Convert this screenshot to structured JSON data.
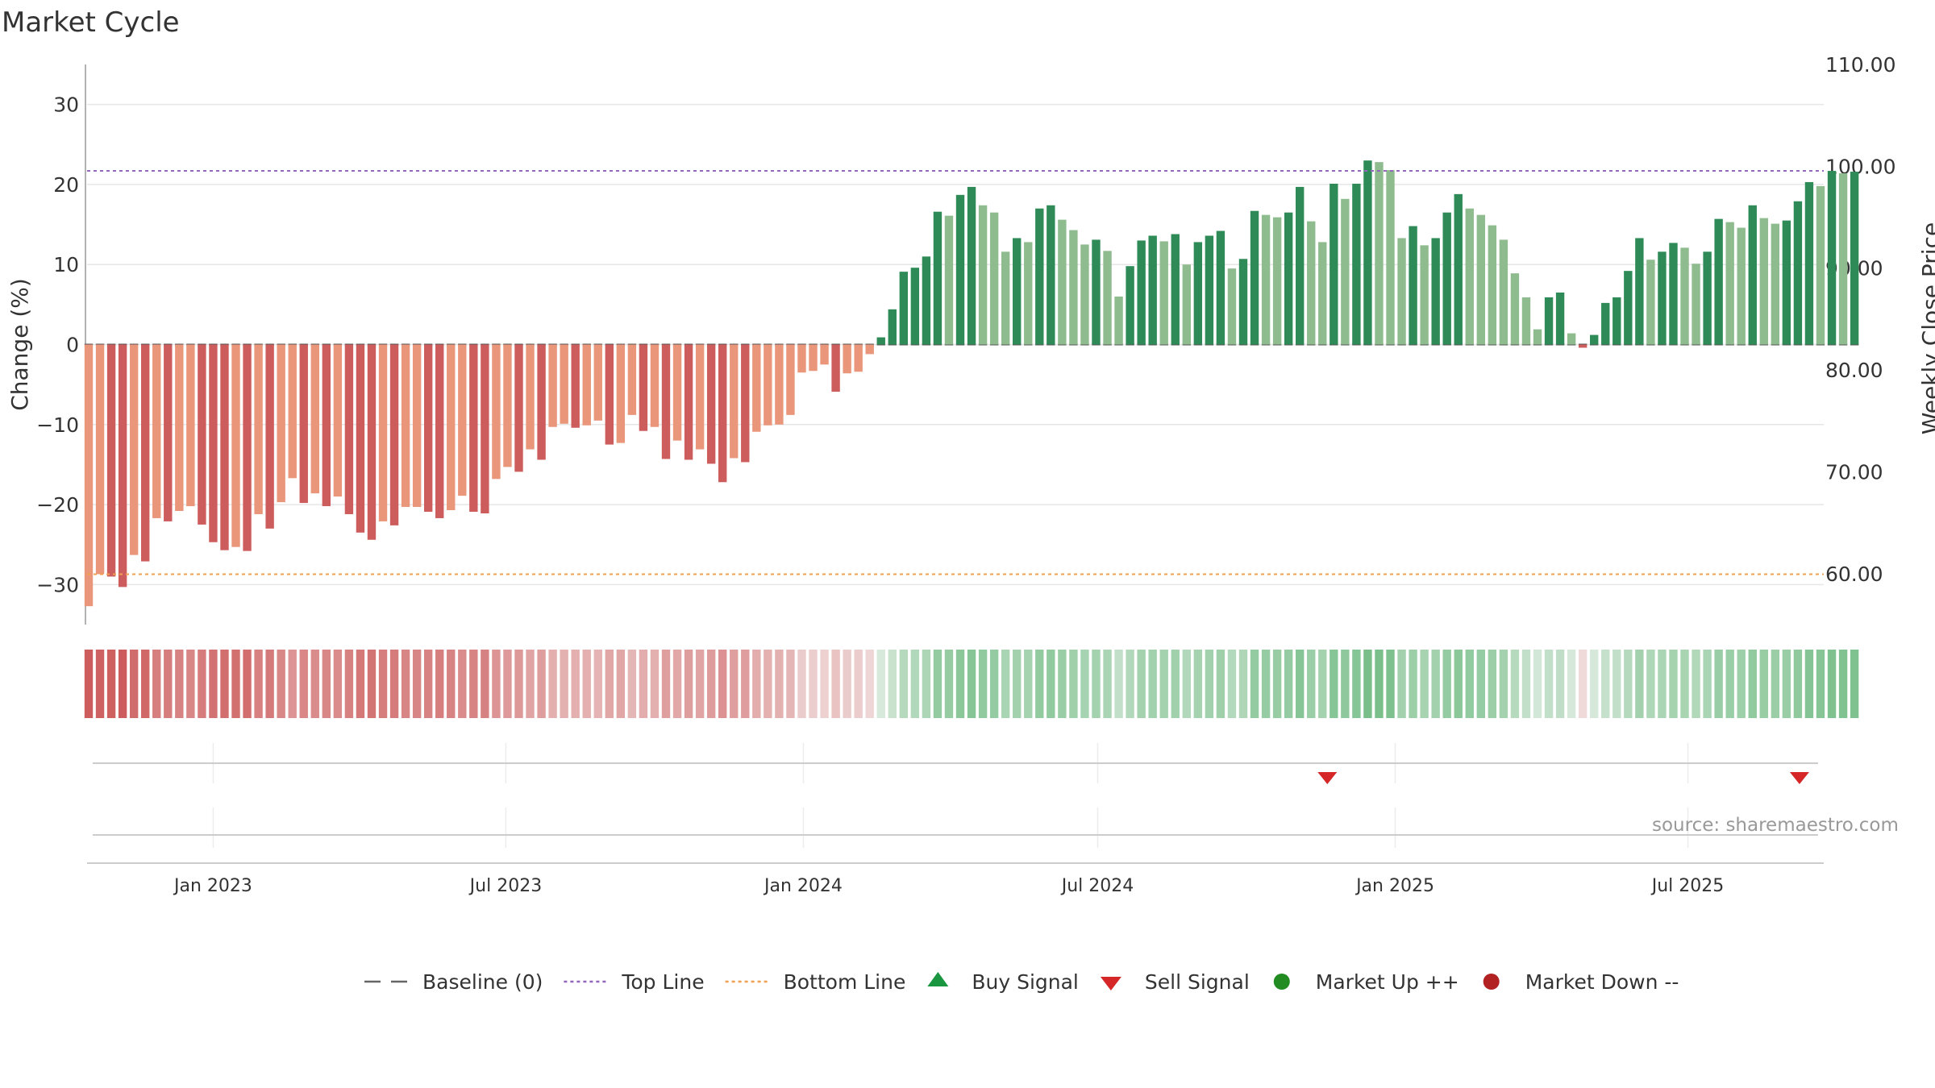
{
  "chart_data": {
    "type": "bar",
    "title": "Market Cycle",
    "source": "source: sharemaestro.com",
    "ylabel_left": "Change (%)",
    "ylabel_right": "Weekly Close Price",
    "ylim_left": [
      -35,
      35
    ],
    "ylim_right": [
      55,
      110
    ],
    "yticks_left": [
      30,
      20,
      10,
      0,
      -10,
      -20,
      -30
    ],
    "ytick_labels_left": [
      "30",
      "20",
      "10",
      "0",
      "−10",
      "−20",
      "−30"
    ],
    "yticks_right": [
      110,
      100,
      90,
      80,
      70,
      60
    ],
    "ytick_labels_right": [
      "110.00",
      "100.00",
      "90.00",
      "80.00",
      "70.00",
      "60.00"
    ],
    "x_start": "2022-10-15",
    "x_end": "2025-09-23",
    "x_ticks": [
      {
        "date": "2023-01-01",
        "label": "Jan 2023"
      },
      {
        "date": "2023-07-01",
        "label": "Jul 2023"
      },
      {
        "date": "2024-01-01",
        "label": "Jan 2024"
      },
      {
        "date": "2024-07-01",
        "label": "Jul 2024"
      },
      {
        "date": "2025-01-01",
        "label": "Jan 2025"
      },
      {
        "date": "2025-07-01",
        "label": "Jul 2025"
      }
    ],
    "top_line": 21.7,
    "bottom_line": -28.7,
    "baseline": 0,
    "series": [
      {
        "start_date": "2022-10-16",
        "interval_days": 7,
        "values": [
          -32.7,
          -28.7,
          -29.0,
          -30.3,
          -26.3,
          -27.1,
          -21.7,
          -22.1,
          -20.8,
          -20.2,
          -22.5,
          -24.7,
          -25.7,
          -25.3,
          -25.8,
          -21.2,
          -23.0,
          -19.7,
          -16.7,
          -19.8,
          -18.6,
          -20.2,
          -19.0,
          -21.2,
          -23.5,
          -24.4,
          -22.1,
          -22.6,
          -20.3,
          -20.3,
          -20.9,
          -21.7,
          -20.7,
          -18.9,
          -20.9,
          -21.1,
          -16.8,
          -15.3,
          -15.9,
          -13.1,
          -14.4,
          -10.3,
          -9.9,
          -10.4,
          -10.1,
          -9.5,
          -12.5,
          -12.3,
          -8.8,
          -10.8,
          -10.3,
          -14.3,
          -12.0,
          -14.4,
          -13.1,
          -14.9,
          -17.2,
          -14.2,
          -14.7,
          -10.9,
          -10.1,
          -10.0,
          -8.8,
          -3.5,
          -3.3,
          -2.5,
          -5.9,
          -3.6,
          -3.4,
          -1.2,
          0.9,
          4.4,
          9.1,
          9.6,
          11.0,
          16.6,
          16.1,
          18.7,
          19.7,
          17.4,
          16.5,
          11.6,
          13.3,
          12.8,
          17.0,
          17.4,
          15.6,
          14.3,
          12.5,
          13.1,
          11.7,
          6.0,
          9.8,
          13.0,
          13.6,
          12.9,
          13.8,
          10.0,
          12.8,
          13.6,
          14.2,
          9.5,
          10.7,
          16.7,
          16.2,
          15.9,
          16.5,
          19.7,
          15.4,
          12.8,
          20.1,
          18.2,
          20.1,
          23.0,
          22.8,
          21.8,
          13.3,
          14.8,
          12.4,
          13.3,
          16.5,
          18.8,
          17.0,
          16.2,
          14.9,
          13.1,
          8.9,
          5.9,
          1.9,
          5.9,
          6.5,
          1.4,
          -0.4,
          1.2,
          5.2,
          5.9,
          9.2,
          13.3,
          10.6,
          11.6,
          12.7,
          12.1,
          10.1,
          11.6,
          15.7,
          15.3,
          14.6,
          17.4,
          15.8,
          15.1,
          15.5,
          17.9,
          20.3,
          19.8,
          21.7,
          21.4,
          21.6
        ]
      }
    ],
    "sell_signals": [
      "2024-11-20",
      "2025-09-08"
    ],
    "buy_signals": [],
    "colors": {
      "neg_dark": "#cd5c5c",
      "neg_light": "#e9967a",
      "pos_dark": "#2e8b57",
      "pos_light": "#8fbc8f",
      "heat_neg": "#cd5c5c",
      "heat_pos": "#5cb270",
      "top_line": "#9467bd",
      "bottom_line": "#f0a050",
      "baseline": "#555555",
      "sell": "#d62728",
      "buy": "#2ca02c",
      "market_up": "#228b22",
      "market_down": "#b22222"
    },
    "legend": [
      {
        "label": "Baseline (0)",
        "kind": "dash",
        "color": "#666666"
      },
      {
        "label": "Top Line",
        "kind": "dot",
        "color": "#9467bd"
      },
      {
        "label": "Bottom Line",
        "kind": "dot",
        "color": "#f0a050"
      },
      {
        "label": "Buy Signal",
        "kind": "tri-up",
        "color": "#1a9641"
      },
      {
        "label": "Sell Signal",
        "kind": "tri-down",
        "color": "#d62728"
      },
      {
        "label": "Market Up ++",
        "kind": "circle",
        "color": "#228b22"
      },
      {
        "label": "Market Down --",
        "kind": "circle",
        "color": "#b22222"
      }
    ],
    "legend_position": "bottom-center"
  }
}
